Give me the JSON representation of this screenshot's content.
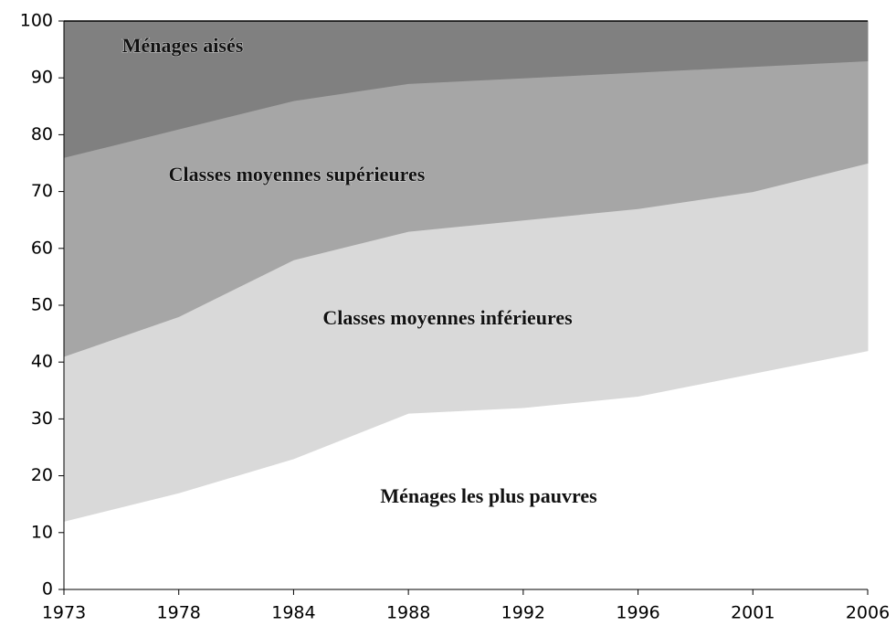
{
  "chart_data": {
    "type": "stacked_area",
    "categories": [
      "1973",
      "1978",
      "1984",
      "1988",
      "1992",
      "1996",
      "2001",
      "2006"
    ],
    "series": [
      {
        "name": "Ménages les plus pauvres",
        "color": "#ffffff",
        "values": [
          12,
          17,
          23,
          31,
          32,
          34,
          38,
          42
        ]
      },
      {
        "name": "Classes moyennes inférieures",
        "color": "#d9d9d9",
        "values": [
          29,
          31,
          35,
          32,
          33,
          33,
          32,
          33
        ]
      },
      {
        "name": "Classes moyennes supérieures",
        "color": "#a6a6a6",
        "values": [
          35,
          33,
          28,
          26,
          25,
          24,
          22,
          18
        ]
      },
      {
        "name": "Ménages aisés",
        "color": "#808080",
        "values": [
          24,
          19,
          14,
          11,
          10,
          9,
          8,
          7
        ]
      }
    ],
    "ylim": [
      0,
      100
    ],
    "yticks": [
      0,
      10,
      20,
      30,
      40,
      50,
      60,
      70,
      80,
      90,
      100
    ]
  }
}
